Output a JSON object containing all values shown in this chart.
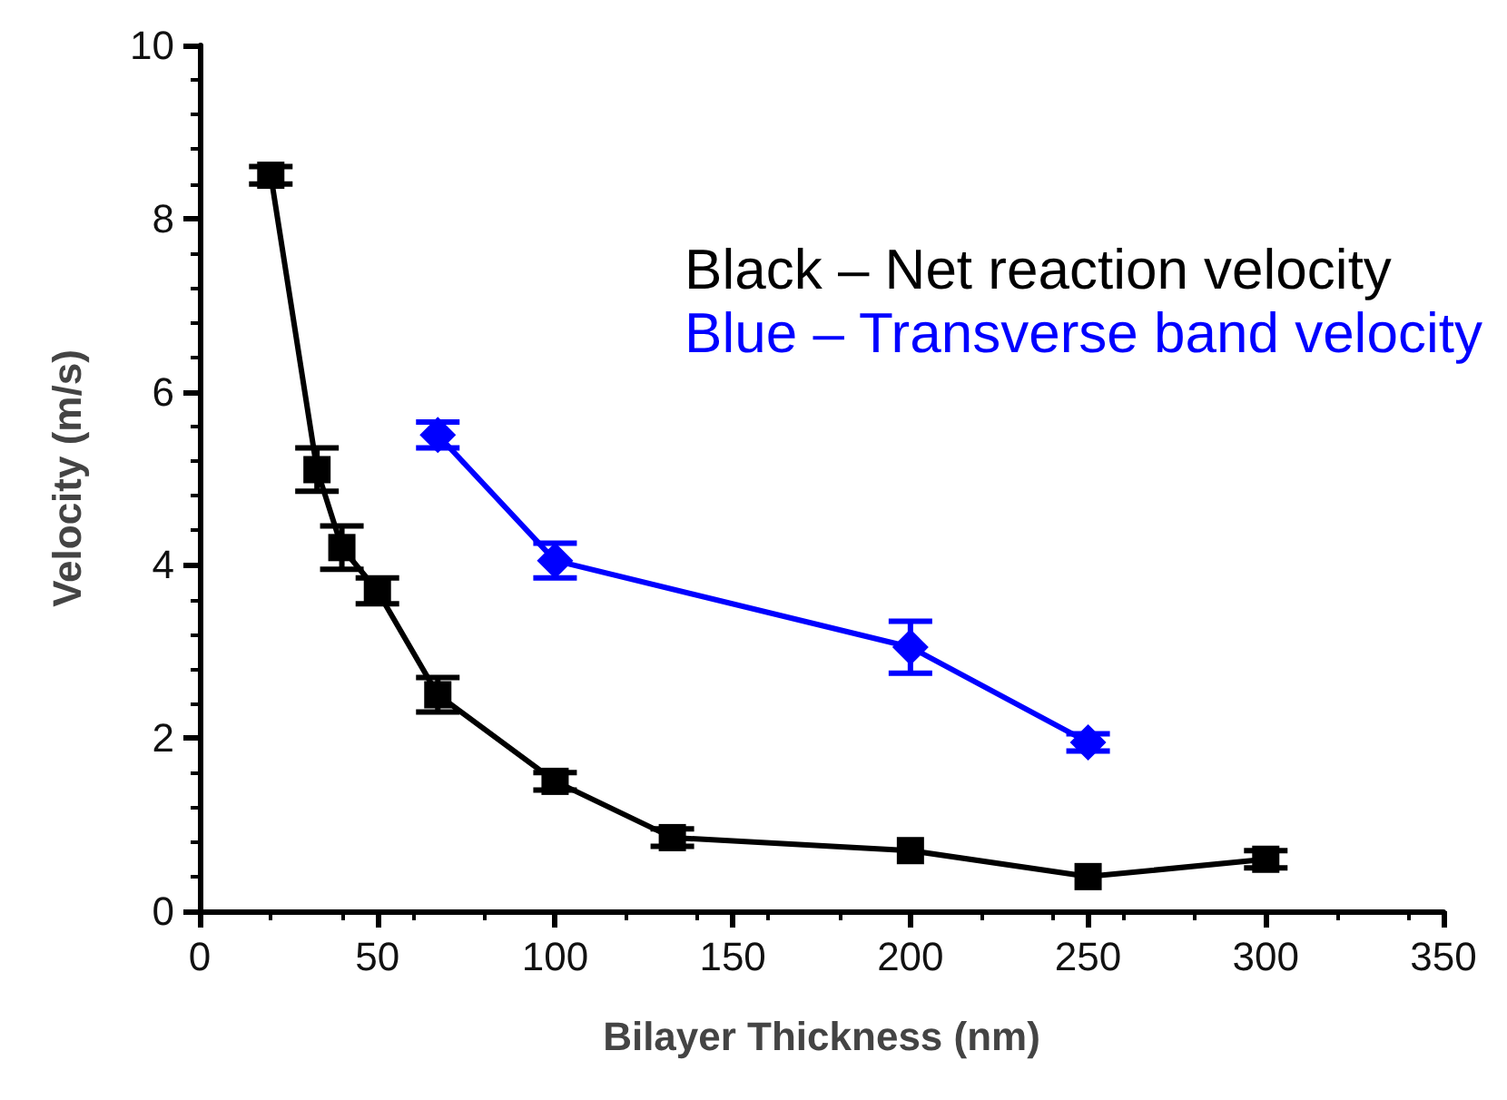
{
  "chart_data": {
    "type": "line",
    "xlabel": "Bilayer Thickness (nm)",
    "ylabel": "Velocity (m/s)",
    "xlim": [
      0,
      350
    ],
    "xticks": [
      0,
      50,
      100,
      150,
      200,
      250,
      300,
      350
    ],
    "ylim": [
      0,
      10
    ],
    "yticks": [
      0,
      2,
      4,
      6,
      8,
      10
    ],
    "grid": false,
    "legend": "top right",
    "series": [
      {
        "name": "Black – Net reaction velocity",
        "color": "#000000",
        "marker": "square",
        "x": [
          20,
          33,
          40,
          50,
          67,
          100,
          133,
          200,
          250,
          300
        ],
        "values": [
          8.5,
          5.1,
          4.2,
          3.7,
          2.5,
          1.5,
          0.85,
          0.7,
          0.4,
          0.6
        ],
        "errors": [
          0.1,
          0.25,
          0.25,
          0.15,
          0.2,
          0.1,
          0.1,
          null,
          null,
          0.1
        ]
      },
      {
        "name": "Blue – Transverse band velocity",
        "color": "#0000ff",
        "marker": "diamond",
        "x": [
          67,
          100,
          200,
          250
        ],
        "values": [
          5.5,
          4.05,
          3.05,
          1.95
        ],
        "errors": [
          0.15,
          0.2,
          0.3,
          0.1
        ]
      }
    ]
  }
}
